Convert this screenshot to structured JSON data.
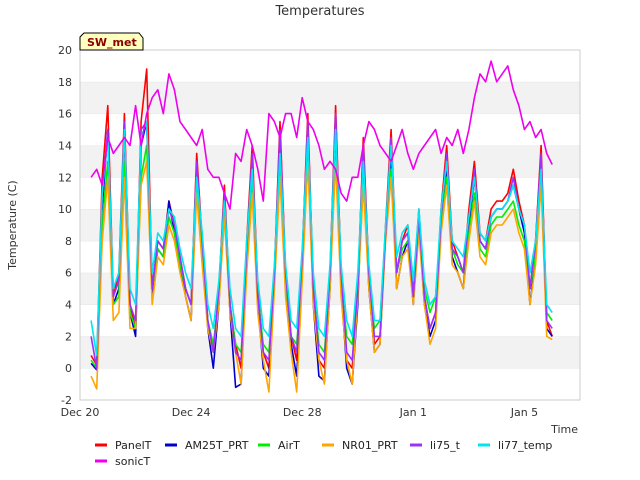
{
  "chart_data": {
    "type": "line",
    "title": "Temperatures",
    "badge": "SW_met",
    "xlabel": "Time",
    "ylabel": "Temperature (C)",
    "ylim": [
      -2,
      20
    ],
    "yticks": [
      -2,
      0,
      2,
      4,
      6,
      8,
      10,
      12,
      14,
      16,
      18,
      20
    ],
    "xlim": [
      0,
      18
    ],
    "x_unit": "days from Dec 20",
    "xticks": [
      {
        "label": "Dec 20",
        "value": 0
      },
      {
        "label": "Dec 24",
        "value": 4
      },
      {
        "label": "Dec 28",
        "value": 8
      },
      {
        "label": "Jan 1",
        "value": 12
      },
      {
        "label": "Jan 5",
        "value": 16
      }
    ],
    "grid": "horizontal bands",
    "legend_position": "bottom",
    "x": [
      0.4,
      0.6,
      0.8,
      1.0,
      1.2,
      1.4,
      1.6,
      1.8,
      2.0,
      2.2,
      2.4,
      2.6,
      2.8,
      3.0,
      3.2,
      3.4,
      3.6,
      3.8,
      4.0,
      4.2,
      4.4,
      4.6,
      4.8,
      5.0,
      5.2,
      5.4,
      5.6,
      5.8,
      6.0,
      6.2,
      6.4,
      6.6,
      6.8,
      7.0,
      7.2,
      7.4,
      7.6,
      7.8,
      8.0,
      8.2,
      8.4,
      8.6,
      8.8,
      9.0,
      9.2,
      9.4,
      9.6,
      9.8,
      10.0,
      10.2,
      10.4,
      10.6,
      10.8,
      11.0,
      11.2,
      11.4,
      11.6,
      11.8,
      12.0,
      12.2,
      12.4,
      12.6,
      12.8,
      13.0,
      13.2,
      13.4,
      13.6,
      13.8,
      14.0,
      14.2,
      14.4,
      14.6,
      14.8,
      15.0,
      15.2,
      15.4,
      15.6,
      15.8,
      16.0,
      16.2,
      16.4,
      16.6,
      16.8,
      17.0
    ],
    "series": [
      {
        "name": "PanelT",
        "color": "#ff0000",
        "values": [
          0.8,
          0.2,
          12.0,
          16.5,
          4.5,
          6.0,
          16.0,
          4.0,
          2.5,
          15.5,
          18.8,
          5.0,
          8.0,
          7.5,
          10.5,
          9.0,
          7.0,
          5.0,
          4.0,
          13.5,
          8.0,
          3.0,
          1.0,
          5.0,
          11.5,
          4.0,
          1.5,
          0.0,
          8.0,
          14.0,
          5.0,
          1.0,
          0.0,
          6.0,
          15.5,
          6.0,
          2.0,
          0.5,
          7.0,
          16.0,
          5.0,
          0.5,
          0.0,
          6.0,
          16.5,
          6.0,
          0.5,
          0.0,
          5.0,
          14.5,
          6.0,
          1.5,
          2.0,
          9.0,
          15.0,
          6.0,
          8.0,
          9.0,
          5.0,
          10.0,
          4.5,
          2.5,
          3.5,
          10.0,
          14.0,
          8.0,
          7.0,
          6.0,
          10.0,
          13.0,
          8.5,
          8.0,
          10.0,
          10.5,
          10.5,
          11.0,
          12.5,
          10.5,
          9.0,
          5.0,
          8.0,
          14.0,
          3.0,
          2.0
        ]
      },
      {
        "name": "AM25T_PRT",
        "color": "#0000cc",
        "values": [
          0.3,
          -0.1,
          10.0,
          15.0,
          4.0,
          5.0,
          15.0,
          3.5,
          2.0,
          14.0,
          15.5,
          4.5,
          7.5,
          7.0,
          10.5,
          8.5,
          6.5,
          4.5,
          3.0,
          12.0,
          7.5,
          2.5,
          0.0,
          4.0,
          11.0,
          3.5,
          -1.2,
          -1.0,
          7.0,
          13.0,
          4.0,
          0.0,
          -0.5,
          5.5,
          14.5,
          5.0,
          1.5,
          -0.5,
          6.0,
          15.0,
          4.0,
          -0.5,
          -0.8,
          5.0,
          15.0,
          5.0,
          0.0,
          -1.0,
          4.0,
          13.5,
          5.0,
          1.0,
          1.5,
          8.5,
          13.5,
          5.0,
          7.0,
          8.0,
          4.0,
          9.0,
          4.0,
          2.0,
          3.0,
          9.0,
          12.5,
          7.0,
          6.0,
          5.0,
          9.0,
          12.0,
          8.0,
          7.5,
          9.5,
          10.0,
          10.0,
          10.5,
          11.5,
          10.0,
          8.5,
          4.0,
          7.0,
          13.0,
          2.5,
          2.0
        ]
      },
      {
        "name": "AirT",
        "color": "#00ee00",
        "values": [
          0.5,
          0.0,
          9.0,
          13.0,
          4.0,
          4.5,
          13.0,
          3.5,
          2.5,
          12.0,
          14.0,
          5.0,
          7.5,
          7.0,
          9.5,
          8.5,
          6.5,
          5.0,
          4.0,
          11.5,
          7.5,
          3.0,
          1.5,
          4.5,
          10.0,
          4.0,
          1.5,
          1.0,
          6.5,
          11.5,
          4.5,
          1.5,
          1.0,
          5.5,
          13.0,
          5.5,
          2.0,
          1.5,
          6.0,
          13.5,
          5.0,
          1.5,
          1.0,
          5.5,
          13.5,
          5.5,
          2.0,
          1.5,
          5.0,
          12.0,
          5.5,
          2.5,
          3.0,
          8.5,
          12.5,
          6.0,
          7.5,
          8.0,
          5.0,
          9.0,
          5.0,
          3.5,
          4.5,
          9.0,
          12.0,
          7.5,
          6.5,
          6.0,
          8.5,
          11.0,
          7.5,
          7.0,
          9.0,
          9.5,
          9.5,
          10.0,
          10.5,
          9.0,
          8.0,
          5.0,
          7.0,
          12.0,
          3.5,
          3.0
        ]
      },
      {
        "name": "NR01_PRT",
        "color": "#ffa500",
        "values": [
          -0.5,
          -1.3,
          8.0,
          12.0,
          3.0,
          3.5,
          12.0,
          2.5,
          2.5,
          11.5,
          13.0,
          4.0,
          7.0,
          6.5,
          9.0,
          8.0,
          6.0,
          4.5,
          3.0,
          11.0,
          6.5,
          2.5,
          1.0,
          4.0,
          9.5,
          3.5,
          1.0,
          -1.0,
          6.0,
          11.0,
          3.5,
          0.5,
          -1.5,
          5.0,
          12.0,
          4.5,
          1.0,
          -1.5,
          5.5,
          13.0,
          4.0,
          0.5,
          -1.0,
          5.0,
          13.0,
          4.5,
          0.5,
          -1.0,
          4.5,
          11.5,
          5.0,
          1.0,
          1.5,
          8.0,
          12.0,
          5.0,
          7.0,
          7.5,
          4.0,
          8.5,
          4.0,
          1.5,
          2.5,
          8.5,
          11.5,
          6.5,
          6.0,
          5.0,
          8.0,
          10.5,
          7.0,
          6.5,
          8.5,
          9.0,
          9.0,
          9.5,
          10.0,
          8.5,
          7.5,
          4.0,
          6.5,
          11.5,
          2.0,
          1.8
        ]
      },
      {
        "name": "li75_t",
        "color": "#9b30ff",
        "values": [
          2.0,
          0.0,
          11.0,
          15.0,
          4.5,
          5.5,
          15.5,
          4.0,
          3.0,
          15.0,
          15.5,
          5.0,
          8.0,
          7.5,
          10.0,
          9.0,
          7.0,
          5.0,
          4.0,
          13.0,
          8.0,
          3.0,
          1.0,
          5.0,
          11.0,
          4.0,
          1.0,
          0.5,
          7.5,
          13.5,
          4.5,
          1.0,
          0.5,
          6.0,
          15.0,
          6.0,
          2.0,
          1.0,
          7.0,
          15.5,
          5.0,
          1.0,
          0.5,
          6.0,
          16.0,
          6.0,
          1.0,
          0.5,
          5.0,
          14.0,
          6.0,
          2.0,
          2.0,
          8.5,
          14.5,
          6.0,
          8.0,
          8.5,
          4.5,
          9.5,
          4.5,
          2.5,
          3.5,
          9.5,
          13.5,
          7.5,
          7.0,
          6.0,
          9.5,
          12.5,
          8.0,
          7.5,
          9.5,
          10.0,
          10.0,
          10.5,
          12.0,
          10.0,
          9.0,
          5.0,
          8.0,
          13.5,
          3.0,
          2.5
        ]
      },
      {
        "name": "li77_temp",
        "color": "#00e5ee",
        "values": [
          3.0,
          0.8,
          11.0,
          14.5,
          5.0,
          6.0,
          15.0,
          5.0,
          4.0,
          14.5,
          15.5,
          6.0,
          8.5,
          8.0,
          10.0,
          9.5,
          7.5,
          6.0,
          5.0,
          12.0,
          8.5,
          4.0,
          2.5,
          5.5,
          10.5,
          5.0,
          2.5,
          2.0,
          8.0,
          12.5,
          5.5,
          2.5,
          2.0,
          6.5,
          13.5,
          6.5,
          3.0,
          2.5,
          7.5,
          14.5,
          6.0,
          2.5,
          2.0,
          6.5,
          15.0,
          6.5,
          3.0,
          2.0,
          6.0,
          13.0,
          6.5,
          3.0,
          3.0,
          9.0,
          14.0,
          7.0,
          8.5,
          9.0,
          5.5,
          10.0,
          5.5,
          4.0,
          4.5,
          10.0,
          13.0,
          8.0,
          7.5,
          7.0,
          9.5,
          12.0,
          8.5,
          8.0,
          9.5,
          10.0,
          10.0,
          10.5,
          11.5,
          10.0,
          9.0,
          6.0,
          8.0,
          12.5,
          4.0,
          3.5
        ]
      },
      {
        "name": "sonicT",
        "color": "#ee00ee",
        "values": [
          12.0,
          12.5,
          11.5,
          14.5,
          13.5,
          14.0,
          14.5,
          14.0,
          16.5,
          14.0,
          16.0,
          17.0,
          17.5,
          16.0,
          18.5,
          17.5,
          15.5,
          15.0,
          14.5,
          14.0,
          15.0,
          12.5,
          12.0,
          12.0,
          11.0,
          10.0,
          13.5,
          13.0,
          15.0,
          14.0,
          12.5,
          10.5,
          16.0,
          15.5,
          14.5,
          16.0,
          16.0,
          14.5,
          17.0,
          15.5,
          15.0,
          14.0,
          12.5,
          13.0,
          12.5,
          11.0,
          10.5,
          12.0,
          12.0,
          14.0,
          15.5,
          15.0,
          14.0,
          13.5,
          13.0,
          14.0,
          15.0,
          13.5,
          12.5,
          13.5,
          14.0,
          14.5,
          15.0,
          13.5,
          14.5,
          14.0,
          15.0,
          13.5,
          15.0,
          17.0,
          18.5,
          18.0,
          19.3,
          18.0,
          18.5,
          19.0,
          17.5,
          16.5,
          15.0,
          15.5,
          14.5,
          15.0,
          13.5,
          12.8
        ]
      }
    ]
  }
}
